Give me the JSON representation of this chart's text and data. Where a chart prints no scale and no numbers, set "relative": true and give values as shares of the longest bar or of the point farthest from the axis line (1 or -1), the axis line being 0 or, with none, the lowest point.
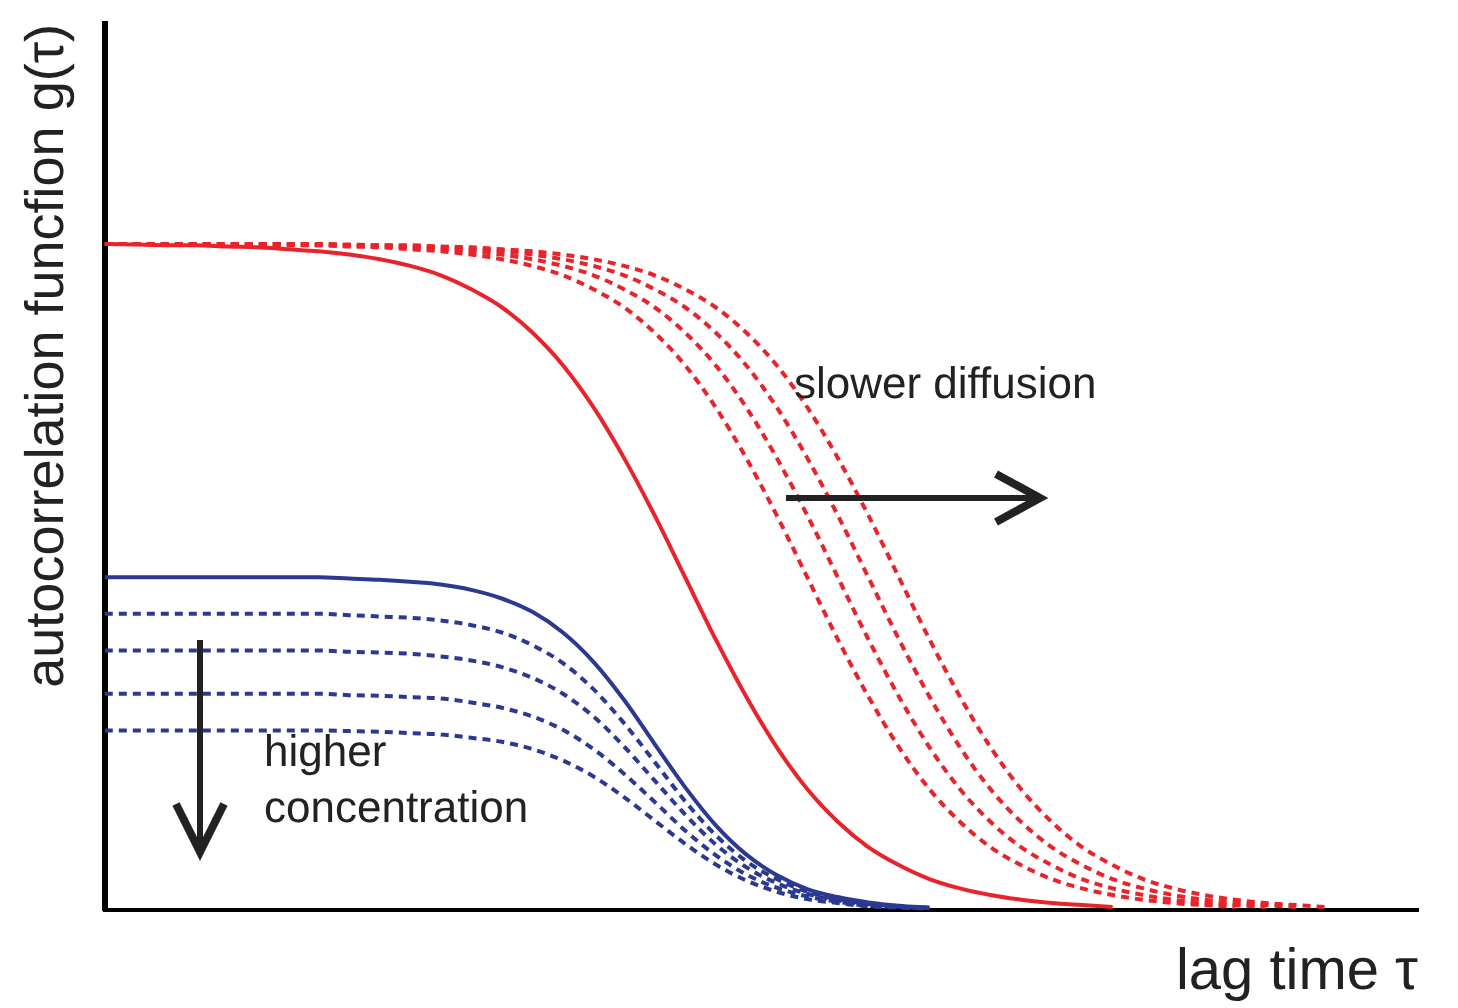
{
  "chart_data": {
    "type": "line",
    "relative": true,
    "xlabel": "lag time τ",
    "ylabel": "autocorrelation funcfion g(τ)",
    "legend": false,
    "grid": false,
    "marker": "none",
    "annotations": [
      "slower diffusion",
      "higher concentration"
    ],
    "categories": [
      null,
      null,
      null,
      null,
      null,
      null,
      null,
      null,
      null,
      null,
      null,
      null,
      null,
      null,
      null,
      null,
      null,
      null,
      null,
      null,
      null,
      null,
      null,
      null,
      null,
      null,
      null,
      null,
      null,
      null,
      null,
      null,
      null,
      null,
      null,
      null,
      null,
      null,
      null,
      null,
      null,
      null,
      null,
      null
    ],
    "series": [
      {
        "color": "#e8232b",
        "line_style": "solid",
        "values": [
          1,
          0.999,
          0.998,
          0.998,
          0.996,
          0.995,
          0.992,
          0.989,
          0.984,
          0.977,
          0.967,
          0.953,
          0.932,
          0.905,
          0.867,
          0.818,
          0.755,
          0.679,
          0.593,
          0.5,
          0.407,
          0.321,
          0.245,
          0.182,
          0.133,
          0.095,
          0.068,
          0.047,
          0.033,
          0.023,
          0.016,
          0.011,
          0.008,
          0.005,
          null,
          null,
          null,
          null,
          null,
          null,
          null,
          null,
          null,
          null
        ]
      },
      {
        "color": "#e8232b",
        "line_style": "dashed",
        "values": [
          1,
          1,
          1,
          1,
          1,
          0.999,
          0.998,
          0.998,
          0.996,
          0.995,
          0.992,
          0.989,
          0.984,
          0.977,
          0.967,
          0.953,
          0.932,
          0.905,
          0.867,
          0.818,
          0.755,
          0.679,
          0.593,
          0.5,
          0.407,
          0.321,
          0.245,
          0.182,
          0.133,
          0.095,
          0.068,
          0.047,
          0.033,
          0.023,
          0.016,
          0.011,
          0.008,
          0.005,
          null,
          null,
          null,
          null,
          null,
          null
        ]
      },
      {
        "color": "#e8232b",
        "line_style": "dashed",
        "values": [
          1,
          1,
          1,
          1,
          1,
          1,
          0.999,
          0.998,
          0.998,
          0.996,
          0.995,
          0.992,
          0.989,
          0.984,
          0.977,
          0.967,
          0.953,
          0.932,
          0.905,
          0.867,
          0.818,
          0.755,
          0.679,
          0.593,
          0.5,
          0.407,
          0.321,
          0.245,
          0.182,
          0.133,
          0.095,
          0.068,
          0.047,
          0.033,
          0.023,
          0.016,
          0.011,
          0.008,
          0.005,
          null,
          null,
          null,
          null,
          null
        ]
      },
      {
        "color": "#e8232b",
        "line_style": "dashed",
        "values": [
          1,
          1,
          1,
          1,
          1,
          1,
          1,
          0.999,
          0.998,
          0.998,
          0.996,
          0.995,
          0.992,
          0.989,
          0.984,
          0.977,
          0.967,
          0.953,
          0.932,
          0.905,
          0.867,
          0.818,
          0.755,
          0.679,
          0.593,
          0.5,
          0.407,
          0.321,
          0.245,
          0.182,
          0.133,
          0.095,
          0.068,
          0.047,
          0.033,
          0.023,
          0.016,
          0.011,
          0.008,
          0.005,
          null,
          null,
          null,
          null
        ]
      },
      {
        "color": "#e8232b",
        "line_style": "dashed",
        "values": [
          1,
          1,
          1,
          1,
          1,
          1,
          1,
          1,
          0.999,
          0.998,
          0.998,
          0.996,
          0.995,
          0.992,
          0.989,
          0.984,
          0.977,
          0.967,
          0.953,
          0.932,
          0.905,
          0.867,
          0.818,
          0.755,
          0.679,
          0.593,
          0.5,
          0.407,
          0.321,
          0.245,
          0.182,
          0.133,
          0.095,
          0.068,
          0.047,
          0.033,
          0.023,
          0.016,
          0.011,
          0.008,
          0.005,
          null,
          null,
          null
        ]
      },
      {
        "color": "#2b3990",
        "line_style": "solid",
        "values": [
          0.5,
          0.5,
          0.5,
          0.5,
          0.5,
          0.5,
          0.5,
          0.5,
          0.498,
          0.496,
          0.493,
          0.489,
          0.481,
          0.468,
          0.448,
          0.417,
          0.373,
          0.316,
          0.25,
          0.185,
          0.128,
          0.084,
          0.053,
          0.032,
          0.02,
          0.012,
          0.007,
          0.004,
          null,
          null,
          null,
          null,
          null,
          null,
          null,
          null,
          null,
          null,
          null,
          null,
          null,
          null,
          null,
          null
        ]
      },
      {
        "color": "#2b3990",
        "line_style": "dashed",
        "values": [
          0.445,
          0.445,
          0.445,
          0.445,
          0.445,
          0.445,
          0.445,
          0.445,
          0.443,
          0.441,
          0.439,
          0.435,
          0.428,
          0.417,
          0.398,
          0.371,
          0.332,
          0.281,
          0.223,
          0.164,
          0.113,
          0.074,
          0.047,
          0.028,
          0.017,
          0.01,
          0.006,
          0.004,
          null,
          null,
          null,
          null,
          null,
          null,
          null,
          null,
          null,
          null,
          null,
          null,
          null,
          null,
          null,
          null
        ]
      },
      {
        "color": "#2b3990",
        "line_style": "dashed",
        "values": [
          0.39,
          0.39,
          0.39,
          0.39,
          0.39,
          0.39,
          0.39,
          0.39,
          0.388,
          0.387,
          0.385,
          0.381,
          0.375,
          0.365,
          0.349,
          0.325,
          0.291,
          0.246,
          0.195,
          0.144,
          0.099,
          0.065,
          0.041,
          0.025,
          0.015,
          0.009,
          0.005,
          0.003,
          null,
          null,
          null,
          null,
          null,
          null,
          null,
          null,
          null,
          null,
          null,
          null,
          null,
          null,
          null,
          null
        ]
      },
      {
        "color": "#2b3990",
        "line_style": "dashed",
        "values": [
          0.325,
          0.325,
          0.325,
          0.325,
          0.325,
          0.325,
          0.325,
          0.325,
          0.323,
          0.322,
          0.32,
          0.318,
          0.312,
          0.304,
          0.291,
          0.271,
          0.242,
          0.205,
          0.163,
          0.12,
          0.083,
          0.054,
          0.034,
          0.021,
          0.013,
          0.007,
          0.005,
          0.003,
          null,
          null,
          null,
          null,
          null,
          null,
          null,
          null,
          null,
          null,
          null,
          null,
          null,
          null,
          null,
          null
        ]
      },
      {
        "color": "#2b3990",
        "line_style": "dashed",
        "values": [
          0.27,
          0.27,
          0.27,
          0.27,
          0.27,
          0.27,
          0.27,
          0.27,
          0.269,
          0.268,
          0.266,
          0.264,
          0.259,
          0.253,
          0.242,
          0.225,
          0.201,
          0.17,
          0.135,
          0.1,
          0.069,
          0.045,
          0.028,
          0.017,
          0.011,
          0.006,
          0.004,
          0.002,
          null,
          null,
          null,
          null,
          null,
          null,
          null,
          null,
          null,
          null,
          null,
          null,
          null,
          null,
          null,
          null
        ]
      }
    ]
  }
}
